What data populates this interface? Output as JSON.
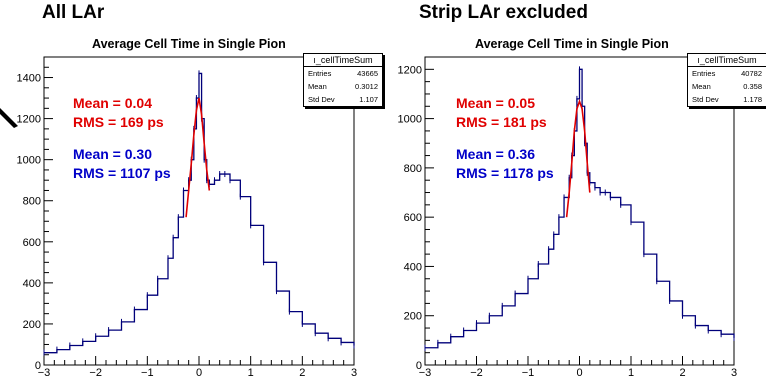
{
  "left": {
    "heading": "All LAr",
    "title": "Average Cell Time in Single Pion",
    "statbox": {
      "name": "ı_cellTimeSum",
      "rows": [
        {
          "label": "Entries",
          "value": "43665"
        },
        {
          "label": "Mean",
          "value": "0.3012"
        },
        {
          "label": "Std Dev",
          "value": "1.107"
        }
      ]
    },
    "fit_red": {
      "mean": "Mean = 0.04",
      "rms": "RMS = 169 ps"
    },
    "fit_blue": {
      "mean": "Mean = 0.30",
      "rms": "RMS = 1107 ps"
    }
  },
  "right": {
    "heading": "Strip LAr excluded",
    "title": "Average Cell Time in Single Pion",
    "statbox": {
      "name": "ı_cellTimeSum",
      "rows": [
        {
          "label": "Entries",
          "value": "40782"
        },
        {
          "label": "Mean",
          "value": "0.358"
        },
        {
          "label": "Std Dev",
          "value": "1.178"
        }
      ]
    },
    "fit_red": {
      "mean": "Mean = 0.05",
      "rms": "RMS = 181 ps"
    },
    "fit_blue": {
      "mean": "Mean = 0.36",
      "rms": "RMS = 1178 ps"
    }
  },
  "colors": {
    "histogram": "#00007a",
    "fit": "#e00000",
    "blue_text": "#0000c8"
  },
  "chart_data": [
    {
      "type": "line",
      "title": "Average Cell Time in Single Pion",
      "xlabel": "",
      "ylabel": "",
      "xlim": [
        -3,
        3
      ],
      "ylim": [
        0,
        1500
      ],
      "x_ticks": [
        "−3",
        "−2",
        "−1",
        "0",
        "1",
        "2",
        "3"
      ],
      "y_ticks": [
        "0",
        "200",
        "400",
        "600",
        "800",
        "1000",
        "1200",
        "1400"
      ],
      "grid": false,
      "series": [
        {
          "x": [
            -3.0,
            -2.75,
            -2.5,
            -2.25,
            -2.0,
            -1.75,
            -1.5,
            -1.25,
            -1.0,
            -0.8,
            -0.6,
            -0.5,
            -0.4,
            -0.3,
            -0.2,
            -0.15,
            -0.1,
            -0.05,
            0.0,
            0.05,
            0.1,
            0.15,
            0.2,
            0.3,
            0.4,
            0.5,
            0.6,
            0.8,
            1.0,
            1.25,
            1.5,
            1.75,
            2.0,
            2.25,
            2.5,
            2.75,
            3.0
          ],
          "y": [
            60,
            75,
            95,
            115,
            140,
            170,
            210,
            270,
            340,
            420,
            520,
            620,
            720,
            850,
            900,
            1000,
            1150,
            1300,
            1420,
            1200,
            1000,
            900,
            880,
            900,
            930,
            930,
            900,
            820,
            680,
            500,
            360,
            260,
            200,
            155,
            130,
            110,
            95
          ]
        },
        {
          "x": [
            -0.25,
            -0.2,
            -0.15,
            -0.1,
            -0.05,
            0.0,
            0.05,
            0.1,
            0.15,
            0.2
          ],
          "y": [
            720,
            850,
            980,
            1120,
            1240,
            1300,
            1220,
            1080,
            950,
            850
          ]
        }
      ]
    },
    {
      "type": "line",
      "title": "Average Cell Time in Single Pion",
      "xlabel": "",
      "ylabel": "",
      "xlim": [
        -3,
        3
      ],
      "ylim": [
        0,
        1250
      ],
      "x_ticks": [
        "−3",
        "−2",
        "−1",
        "0",
        "1",
        "2",
        "3"
      ],
      "y_ticks": [
        "0",
        "200",
        "400",
        "600",
        "800",
        "1000",
        "1200"
      ],
      "grid": false,
      "series": [
        {
          "x": [
            -3.0,
            -2.75,
            -2.5,
            -2.25,
            -2.0,
            -1.75,
            -1.5,
            -1.25,
            -1.0,
            -0.8,
            -0.6,
            -0.5,
            -0.4,
            -0.3,
            -0.2,
            -0.15,
            -0.1,
            -0.05,
            0.0,
            0.05,
            0.1,
            0.15,
            0.2,
            0.3,
            0.4,
            0.5,
            0.6,
            0.8,
            1.0,
            1.25,
            1.5,
            1.75,
            2.0,
            2.25,
            2.5,
            2.75,
            3.0
          ],
          "y": [
            70,
            90,
            115,
            140,
            170,
            200,
            240,
            290,
            350,
            410,
            470,
            530,
            600,
            680,
            760,
            850,
            950,
            1080,
            1200,
            1050,
            900,
            780,
            740,
            720,
            700,
            700,
            680,
            650,
            580,
            450,
            340,
            260,
            200,
            160,
            140,
            125,
            110
          ]
        },
        {
          "x": [
            -0.25,
            -0.2,
            -0.15,
            -0.1,
            -0.05,
            0.0,
            0.05,
            0.1,
            0.15,
            0.2
          ],
          "y": [
            600,
            700,
            820,
            950,
            1040,
            1070,
            1040,
            950,
            820,
            700
          ]
        }
      ]
    }
  ]
}
